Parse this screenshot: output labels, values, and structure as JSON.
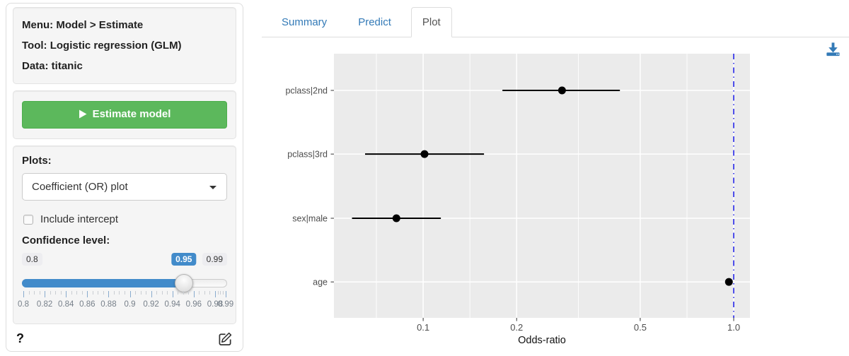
{
  "sidebar": {
    "info": {
      "menu": "Menu: Model > Estimate",
      "tool": "Tool: Logistic regression (GLM)",
      "data": "Data: titanic"
    },
    "estimate_button": {
      "label": "Estimate model",
      "icon": "play-icon"
    },
    "plots": {
      "label": "Plots:",
      "selected": "Coefficient (OR) plot"
    },
    "include_intercept": {
      "label": "Include intercept",
      "checked": false
    },
    "confidence": {
      "label": "Confidence level:",
      "min": 0.8,
      "max": 0.99,
      "value": 0.95,
      "min_label": "0.8",
      "max_label": "0.99",
      "value_label": "0.95",
      "grid_labels": [
        "0.8",
        "0.82",
        "0.84",
        "0.86",
        "0.88",
        "0.9",
        "0.92",
        "0.94",
        "0.96",
        "0.98",
        "0.99"
      ]
    },
    "help_label": "?",
    "edit_icon": "edit-icon"
  },
  "main": {
    "tabs": [
      {
        "label": "Summary",
        "active": false
      },
      {
        "label": "Predict",
        "active": false
      },
      {
        "label": "Plot",
        "active": true
      }
    ],
    "download_icon": "download-icon"
  },
  "chart_data": {
    "type": "scatter",
    "subtype": "coefficient_odds_ratio_plot",
    "orientation": "horizontal",
    "categories": [
      "pclass|2nd",
      "pclass|3rd",
      "sex|male",
      "age"
    ],
    "points": [
      {
        "label": "pclass|2nd",
        "odds_ratio": 0.28,
        "ci_low": 0.18,
        "ci_high": 0.43
      },
      {
        "label": "pclass|3rd",
        "odds_ratio": 0.101,
        "ci_low": 0.065,
        "ci_high": 0.157
      },
      {
        "label": "sex|male",
        "odds_ratio": 0.082,
        "ci_low": 0.059,
        "ci_high": 0.114
      },
      {
        "label": "age",
        "odds_ratio": 0.965,
        "ci_low": 0.953,
        "ci_high": 0.978
      }
    ],
    "xlabel": "Odds-ratio",
    "x_scale": "log",
    "x_ticks": {
      "values": [
        0.1,
        0.2,
        0.5,
        1.0
      ],
      "labels": [
        "0.1",
        "0.2",
        "0.5",
        "1.0"
      ]
    },
    "x_minor_gridlines": [
      0.0707,
      0.1414,
      0.3162,
      0.7071
    ],
    "xlim": [
      0.0516,
      1.128
    ],
    "reference_line": {
      "x": 1.0,
      "color": "#2424E8",
      "style": "dotdash"
    },
    "grid": true,
    "legend": "none",
    "panel_color": "#EBEBEB",
    "point_color": "#000000"
  },
  "colors": {
    "link_blue": "#337AB7",
    "slider_blue": "#428BCA",
    "button_green": "#5CB85C",
    "button_green_border": "#4CAE4C",
    "well_bg": "#F5F5F5",
    "well_border": "#E3E3E3",
    "tab_active_text": "#555555"
  }
}
